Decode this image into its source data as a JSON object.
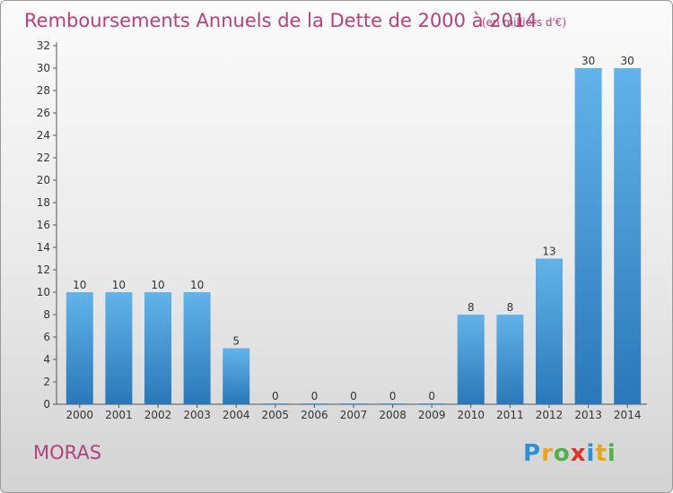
{
  "title": "Remboursements Annuels de la Dette de 2000 à 2014",
  "subtitle": "(en milliers d'€)",
  "commune": "MORAS",
  "logo": {
    "letters": [
      "P",
      "r",
      "o",
      "x",
      "i",
      "t",
      "i"
    ],
    "colors": [
      "#2f8fd8",
      "#e8a41b",
      "#54b04a",
      "#e0322d",
      "#2f8fd8",
      "#e8a41b",
      "#54b04a"
    ]
  },
  "colors": {
    "bar_top": "#63b3ea",
    "bar_bottom": "#2a78b8",
    "title": "#b3417e"
  },
  "chart_data": {
    "type": "bar",
    "title": "Remboursements Annuels de la Dette de 2000 à 2014",
    "subtitle": "(en milliers d'€)",
    "categories": [
      "2000",
      "2001",
      "2002",
      "2003",
      "2004",
      "2005",
      "2006",
      "2007",
      "2008",
      "2009",
      "2010",
      "2011",
      "2012",
      "2013",
      "2014"
    ],
    "values": [
      10,
      10,
      10,
      10,
      5,
      0,
      0,
      0,
      0,
      0,
      8,
      8,
      13,
      30,
      30
    ],
    "ylim": [
      0,
      32
    ],
    "yticks": [
      0,
      2,
      4,
      6,
      8,
      10,
      12,
      14,
      16,
      18,
      20,
      22,
      24,
      26,
      28,
      30,
      32
    ],
    "grid": false,
    "legend": "none"
  }
}
